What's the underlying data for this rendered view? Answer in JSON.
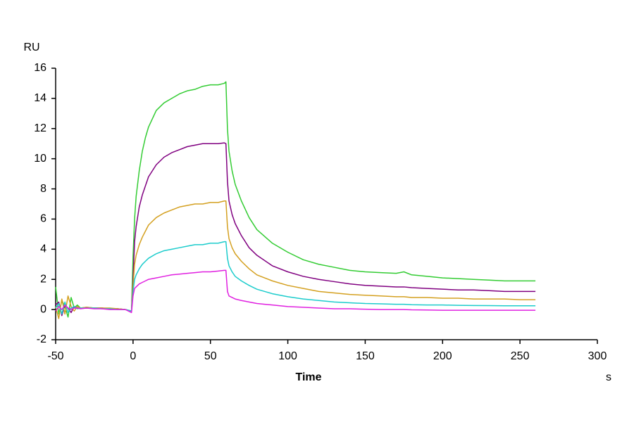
{
  "chart_data": {
    "type": "line",
    "y_label": "RU",
    "x_label": "Time",
    "x_unit": "s",
    "xlim": [
      -50,
      300
    ],
    "xticks": [
      -50,
      0,
      50,
      100,
      150,
      200,
      250,
      300
    ],
    "ylim": [
      -2,
      16
    ],
    "yticks": [
      -2,
      0,
      2,
      4,
      6,
      8,
      10,
      12,
      14,
      16
    ],
    "grid": false,
    "x": [
      -50,
      -48,
      -46,
      -44,
      -42,
      -40,
      -38,
      -36,
      -34,
      -30,
      -25,
      -20,
      -15,
      -10,
      -5,
      -1,
      0,
      1,
      2,
      4,
      6,
      8,
      10,
      15,
      20,
      25,
      30,
      35,
      40,
      45,
      50,
      55,
      59,
      60,
      61,
      62,
      64,
      66,
      70,
      75,
      80,
      90,
      100,
      110,
      120,
      130,
      140,
      150,
      160,
      170,
      175,
      180,
      190,
      200,
      210,
      220,
      230,
      240,
      250,
      260
    ],
    "series": [
      {
        "color": "#33cc33",
        "values": [
          1.5,
          -0.3,
          0.6,
          0.2,
          -0.5,
          0.8,
          0.1,
          0.3,
          0.1,
          0.15,
          0.1,
          0.1,
          0.05,
          0.05,
          0,
          -0.1,
          3.5,
          6.0,
          7.5,
          9.2,
          10.5,
          11.4,
          12.1,
          13.2,
          13.7,
          14.0,
          14.3,
          14.5,
          14.6,
          14.8,
          14.9,
          14.9,
          15.0,
          15.1,
          12.0,
          10.5,
          9.2,
          8.3,
          7.2,
          6.1,
          5.3,
          4.4,
          3.8,
          3.3,
          3.0,
          2.8,
          2.6,
          2.5,
          2.45,
          2.4,
          2.5,
          2.3,
          2.2,
          2.1,
          2.05,
          2.0,
          1.95,
          1.9,
          1.9,
          1.9
        ]
      },
      {
        "color": "#800080",
        "values": [
          0.3,
          0.5,
          -0.4,
          0.3,
          0.1,
          -0.2,
          0.2,
          0.1,
          0.1,
          0.1,
          0.1,
          0.1,
          0.05,
          0.05,
          0,
          -0.1,
          2.0,
          4.5,
          5.5,
          6.8,
          7.6,
          8.2,
          8.8,
          9.6,
          10.1,
          10.4,
          10.6,
          10.8,
          10.9,
          11.0,
          11.0,
          11.0,
          11.05,
          11.0,
          8.5,
          7.2,
          6.3,
          5.7,
          4.9,
          4.1,
          3.6,
          2.9,
          2.5,
          2.2,
          2.0,
          1.85,
          1.7,
          1.6,
          1.55,
          1.5,
          1.5,
          1.45,
          1.4,
          1.35,
          1.3,
          1.3,
          1.25,
          1.2,
          1.2,
          1.2
        ]
      },
      {
        "color": "#d4a020",
        "values": [
          0.2,
          -0.6,
          0.7,
          -0.3,
          0.9,
          0.2,
          -0.1,
          0.2,
          0.1,
          0.15,
          0.1,
          0.1,
          0.1,
          0.05,
          0,
          -0.1,
          1.6,
          3.0,
          3.6,
          4.3,
          4.8,
          5.2,
          5.6,
          6.1,
          6.4,
          6.6,
          6.8,
          6.9,
          7.0,
          7.0,
          7.1,
          7.1,
          7.2,
          7.2,
          5.5,
          4.7,
          4.1,
          3.7,
          3.2,
          2.7,
          2.3,
          1.9,
          1.6,
          1.4,
          1.2,
          1.1,
          1.0,
          0.95,
          0.9,
          0.85,
          0.85,
          0.8,
          0.8,
          0.75,
          0.75,
          0.7,
          0.7,
          0.7,
          0.65,
          0.65
        ]
      },
      {
        "color": "#1ccccc",
        "values": [
          0.1,
          0.4,
          -0.3,
          0.5,
          -0.2,
          0.1,
          0.2,
          0.05,
          0.1,
          0.1,
          0.1,
          0.05,
          0.05,
          0,
          0,
          -0.1,
          1.2,
          2.0,
          2.3,
          2.7,
          3.0,
          3.2,
          3.4,
          3.7,
          3.9,
          4.0,
          4.1,
          4.2,
          4.3,
          4.3,
          4.4,
          4.4,
          4.5,
          4.5,
          3.4,
          2.9,
          2.5,
          2.2,
          1.9,
          1.6,
          1.35,
          1.05,
          0.85,
          0.7,
          0.6,
          0.5,
          0.45,
          0.4,
          0.38,
          0.35,
          0.35,
          0.32,
          0.3,
          0.3,
          0.28,
          0.27,
          0.26,
          0.25,
          0.25,
          0.25
        ]
      },
      {
        "color": "#e020e0",
        "values": [
          -0.1,
          0.2,
          0.0,
          0.3,
          0.1,
          0.0,
          0.1,
          0.1,
          0.05,
          0.1,
          0.05,
          0.05,
          0.0,
          0.0,
          0,
          -0.2,
          0.9,
          1.4,
          1.5,
          1.7,
          1.8,
          1.9,
          2.0,
          2.1,
          2.2,
          2.3,
          2.35,
          2.4,
          2.45,
          2.5,
          2.5,
          2.55,
          2.6,
          2.6,
          1.2,
          0.9,
          0.8,
          0.7,
          0.6,
          0.5,
          0.4,
          0.3,
          0.2,
          0.15,
          0.1,
          0.05,
          0.05,
          0.02,
          0.0,
          0.0,
          0.0,
          -0.02,
          -0.03,
          -0.05,
          -0.05,
          -0.05,
          -0.05,
          -0.05,
          -0.05,
          -0.05
        ]
      }
    ]
  }
}
